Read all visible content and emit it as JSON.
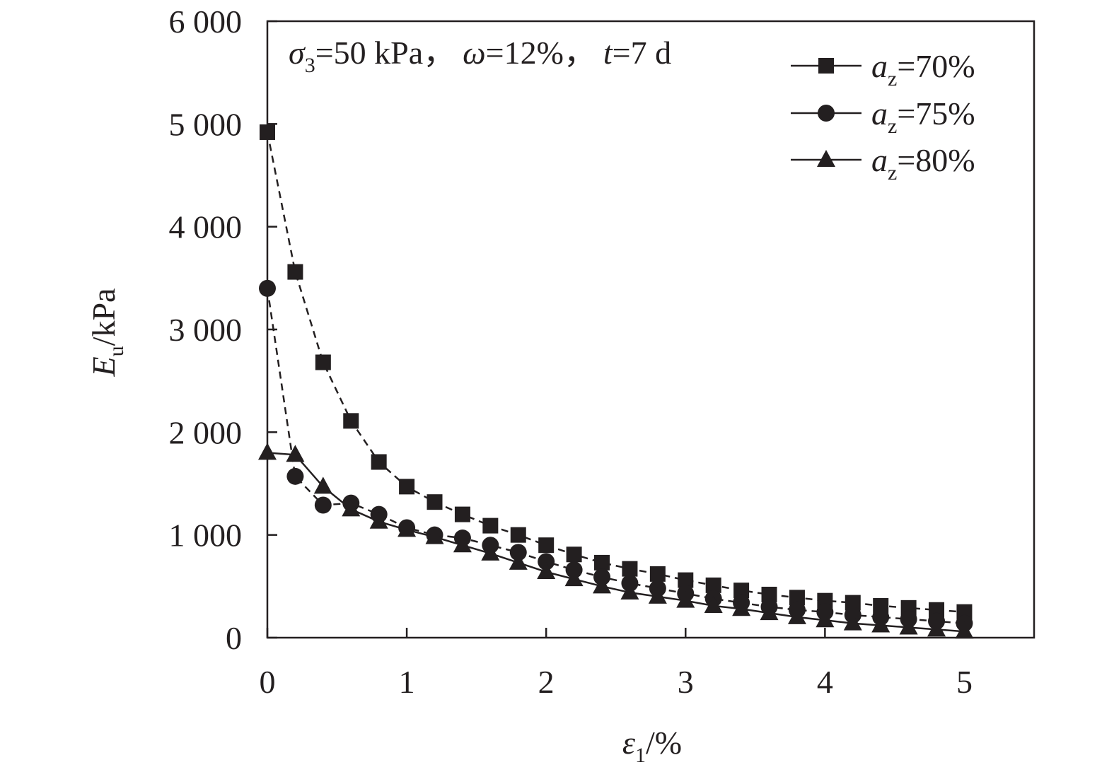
{
  "chart_data": {
    "type": "line",
    "xlabel": {
      "symbol": "ε",
      "sub": "1",
      "unit": "/%"
    },
    "ylabel": {
      "symbol": "E",
      "sub": "u",
      "unit": "/kPa"
    },
    "xlim": [
      0,
      5.5
    ],
    "ylim": [
      0,
      6000
    ],
    "x_ticks": [
      0,
      1,
      2,
      3,
      4,
      5
    ],
    "x_tick_labels": [
      "0",
      "1",
      "2",
      "3",
      "4",
      "5"
    ],
    "y_ticks": [
      0,
      1000,
      2000,
      3000,
      4000,
      5000,
      6000
    ],
    "y_tick_labels": [
      "0",
      "1 000",
      "2 000",
      "3 000",
      "4 000",
      "5 000",
      "6 000"
    ],
    "grid": false,
    "legend_position": "top-right",
    "annotation": {
      "sigma_sym": "σ",
      "sigma_sub": "3",
      "sigma_val": "=50 kPa，",
      "omega_sym": "ω",
      "omega_val": "=12%，",
      "t_sym": "t",
      "t_val": "=7 d"
    },
    "x": [
      0,
      0.2,
      0.4,
      0.6,
      0.8,
      1.0,
      1.2,
      1.4,
      1.6,
      1.8,
      2.0,
      2.2,
      2.4,
      2.6,
      2.8,
      3.0,
      3.2,
      3.4,
      3.6,
      3.8,
      4.0,
      4.2,
      4.4,
      4.6,
      4.8,
      5.0
    ],
    "series": [
      {
        "name_sym": "a",
        "name_sub": "z",
        "name_val": "=70%",
        "marker": "square",
        "values": [
          4920,
          3560,
          2680,
          2110,
          1710,
          1470,
          1320,
          1200,
          1090,
          1000,
          900,
          810,
          730,
          670,
          620,
          560,
          510,
          460,
          420,
          390,
          360,
          340,
          310,
          290,
          270,
          250
        ]
      },
      {
        "name_sym": "a",
        "name_sub": "z",
        "name_val": "=75%",
        "marker": "circle",
        "values": [
          3400,
          1570,
          1290,
          1310,
          1200,
          1070,
          1000,
          970,
          900,
          830,
          740,
          660,
          590,
          530,
          480,
          430,
          380,
          340,
          300,
          270,
          250,
          220,
          200,
          180,
          160,
          140
        ]
      },
      {
        "name_sym": "a",
        "name_sub": "z",
        "name_val": "=80%",
        "marker": "triangle",
        "values": [
          1800,
          1780,
          1470,
          1250,
          1130,
          1050,
          980,
          900,
          820,
          730,
          640,
          570,
          500,
          440,
          400,
          360,
          310,
          280,
          240,
          200,
          170,
          140,
          120,
          100,
          80,
          60
        ]
      }
    ]
  }
}
